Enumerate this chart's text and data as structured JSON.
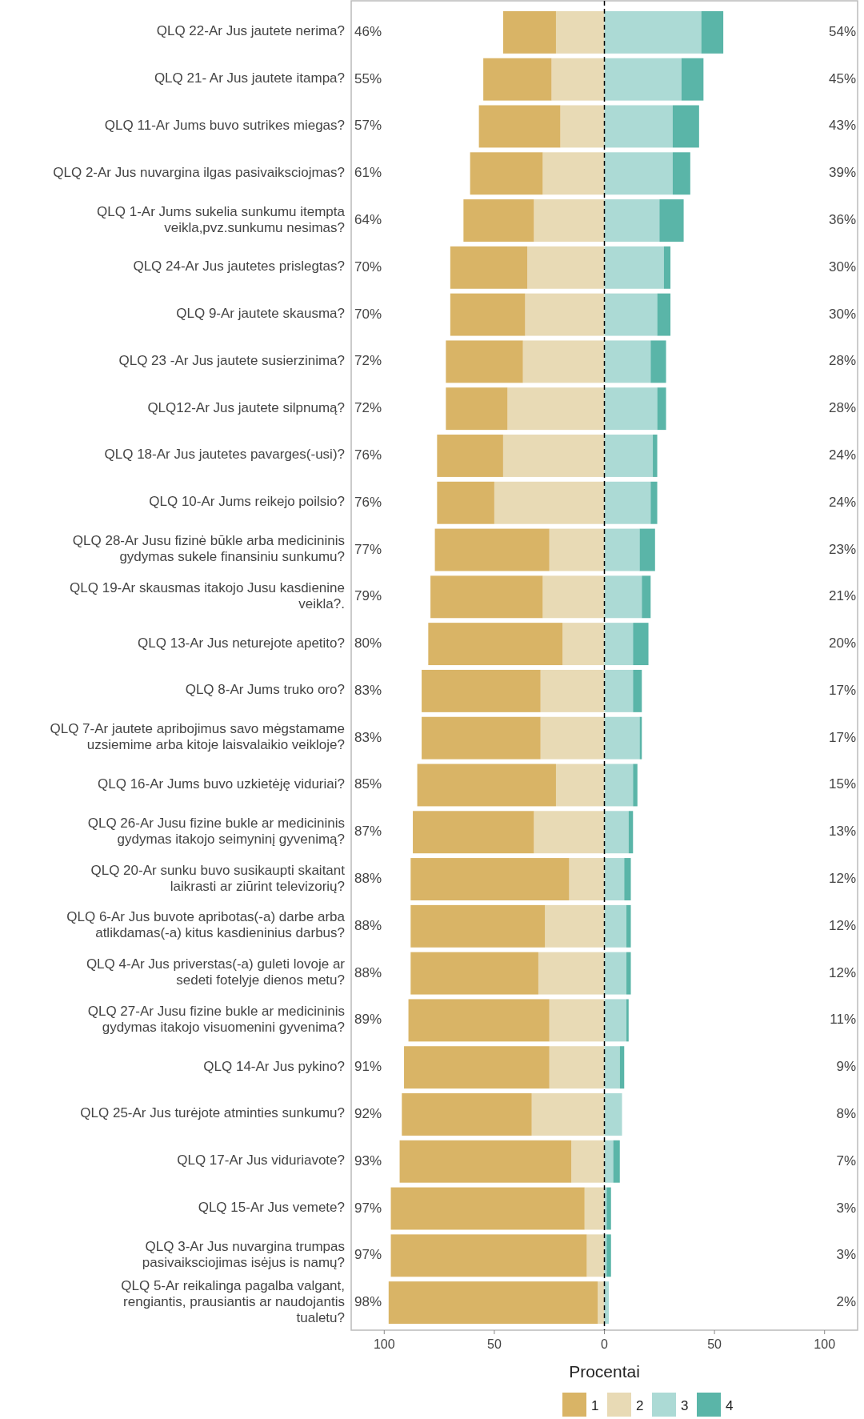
{
  "chart_data": {
    "type": "bar",
    "orientation": "horizontal",
    "stacked": true,
    "xlabel": "Procentai",
    "legend": "bottom",
    "categories": [
      "QLQ 22-Ar Jus jautete nerima?",
      "QLQ 21- Ar Jus jautete itampa?",
      "QLQ 11-Ar Jums buvo sutrikes miegas?",
      "QLQ 2-Ar Jus nuvargina ilgas pasivaiksciojmas?",
      "QLQ 1-Ar Jums sukelia sunkumu itempta veikla,pvz.sunkumu nesimas?",
      "QLQ 24-Ar Jus jautetes prislegtas?",
      "QLQ 9-Ar jautete skausma?",
      "QLQ 23 -Ar Jus jautete susierzinima?",
      "QLQ12-Ar Jus jautete silpnumą?",
      "QLQ 18-Ar Jus jautetes pavarges(-usi)?",
      "QLQ 10-Ar Jums reikejo poilsio?",
      "QLQ 28-Ar Jusu fizinė būkle arba medicininis gydymas sukele finansiniu sunkumu?",
      "QLQ 19-Ar skausmas itakojo Jusu kasdienine veikla?.",
      "QLQ 13-Ar Jus neturejote apetito?",
      "QLQ 8-Ar Jums truko oro?",
      "QLQ 7-Ar jautete apribojimus savo mėgstamame uzsiemime arba kitoje laisvalaikio veikloje?",
      "QLQ 16-Ar Jums buvo uzkietėję viduriai?",
      "QLQ 26-Ar Jusu fizine bukle ar medicininis gydymas itakojo seimyninį gyvenimą?",
      "QLQ 20-Ar sunku buvo susikaupti skaitant laikrasti ar ziūrint televizorių?",
      "QLQ 6-Ar Jus buvote apribotas(-a) darbe arba atlikdamas(-a) kitus kasdieninius darbus?",
      "QLQ 4-Ar Jus priverstas(-a) guleti lovoje ar sedeti fotelyje dienos metu?",
      "QLQ 27-Ar Jusu fizine bukle ar medicininis gydymas itakojo visuomenini gyvenima?",
      "QLQ 14-Ar Jus pykino?",
      "QLQ 25-Ar Jus turėjote atminties sunkumu?",
      "QLQ 17-Ar Jus viduriavote?",
      "QLQ 15-Ar Jus vemete?",
      "QLQ 3-Ar Jus nuvargina trumpas pasivaiksciojimas isėjus is namų?",
      "QLQ 5-Ar reikalinga pagalba valgant, rengiantis, prausiantis ar naudojantis tualetu?"
    ],
    "series": [
      {
        "name": "1",
        "color": "#d9b466",
        "values": [
          -24,
          -31,
          -37,
          -33,
          -32,
          -35,
          -34,
          -35,
          -28,
          -30,
          -26,
          -52,
          -51,
          -61,
          -54,
          -54,
          -63,
          -55,
          -72,
          -61,
          -58,
          -64,
          -66,
          -59,
          -78,
          -88,
          -89,
          -95
        ]
      },
      {
        "name": "2",
        "color": "#e8dab5",
        "values": [
          -22,
          -24,
          -20,
          -28,
          -32,
          -35,
          -36,
          -37,
          -44,
          -46,
          -50,
          -25,
          -28,
          -19,
          -29,
          -29,
          -22,
          -32,
          -16,
          -27,
          -30,
          -25,
          -25,
          -33,
          -15,
          -9,
          -8,
          -3
        ]
      },
      {
        "name": "3",
        "color": "#acdad5",
        "values": [
          44,
          35,
          31,
          31,
          25,
          27,
          24,
          21,
          24,
          22,
          21,
          16,
          17,
          13,
          13,
          16,
          13,
          11,
          9,
          10,
          10,
          10,
          7,
          8,
          4,
          1,
          1,
          2
        ]
      },
      {
        "name": "4",
        "color": "#5ab5a8",
        "values": [
          10,
          10,
          12,
          8,
          11,
          3,
          6,
          7,
          4,
          2,
          3,
          7,
          4,
          7,
          4,
          1,
          2,
          2,
          3,
          2,
          2,
          1,
          2,
          0,
          3,
          2,
          2,
          0
        ]
      }
    ],
    "annotations": [
      "46%",
      "55%",
      "57%",
      "61%",
      "64%",
      "70%",
      "70%",
      "72%",
      "72%",
      "76%",
      "76%",
      "77%",
      "79%",
      "80%",
      "83%",
      "83%",
      "85%",
      "87%",
      "88%",
      "88%",
      "88%",
      "89%",
      "91%",
      "92%",
      "93%",
      "97%",
      "97%",
      "98%",
      "54%",
      "45%",
      "43%",
      "39%",
      "36%",
      "30%",
      "30%",
      "28%",
      "28%",
      "24%",
      "24%",
      "23%",
      "21%",
      "20%",
      "17%",
      "17%",
      "15%",
      "13%",
      "12%",
      "12%",
      "12%",
      "11%",
      "9%",
      "8%",
      "7%",
      "3%",
      "3%",
      "2%"
    ],
    "xlim": [
      -115,
      115
    ],
    "xticks": [
      {
        "value": -100,
        "label": "100"
      },
      {
        "value": -50,
        "label": "50"
      },
      0,
      50,
      100
    ],
    "ref_lines": [
      {
        "axis": "x",
        "value": 0,
        "color": "#000000",
        "line_style": "dashed"
      }
    ]
  }
}
